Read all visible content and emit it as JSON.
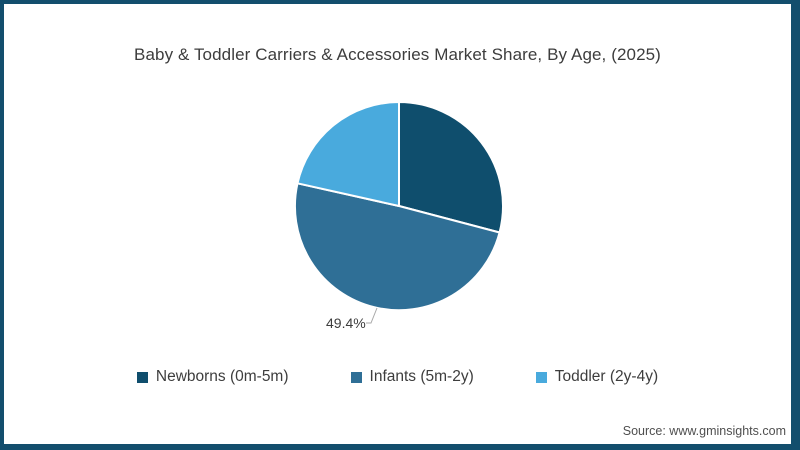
{
  "chart_data": {
    "type": "pie",
    "title": "Baby & Toddler Carriers & Accessories Market Share, By Age, (2025)",
    "slices": [
      {
        "label": "Newborns (0m-5m)",
        "value": 29.1,
        "color": "#0f4e6d",
        "data_label": ""
      },
      {
        "label": "Infants (5m-2y)",
        "value": 49.4,
        "color": "#2f6f96",
        "data_label": "49.4%"
      },
      {
        "label": "Toddler (2y-4y)",
        "value": 21.5,
        "color": "#49aadd",
        "data_label": ""
      }
    ],
    "labeled_slice": "Infants (5m-2y)",
    "start_angle_deg": 0,
    "direction": "clockwise",
    "legend_position": "bottom"
  },
  "source": {
    "label": "Source: www.gminsights.com"
  },
  "colors": {
    "frame": "#134e6d",
    "slice_divider": "#ffffff",
    "leader_line": "#a9a9a9"
  }
}
